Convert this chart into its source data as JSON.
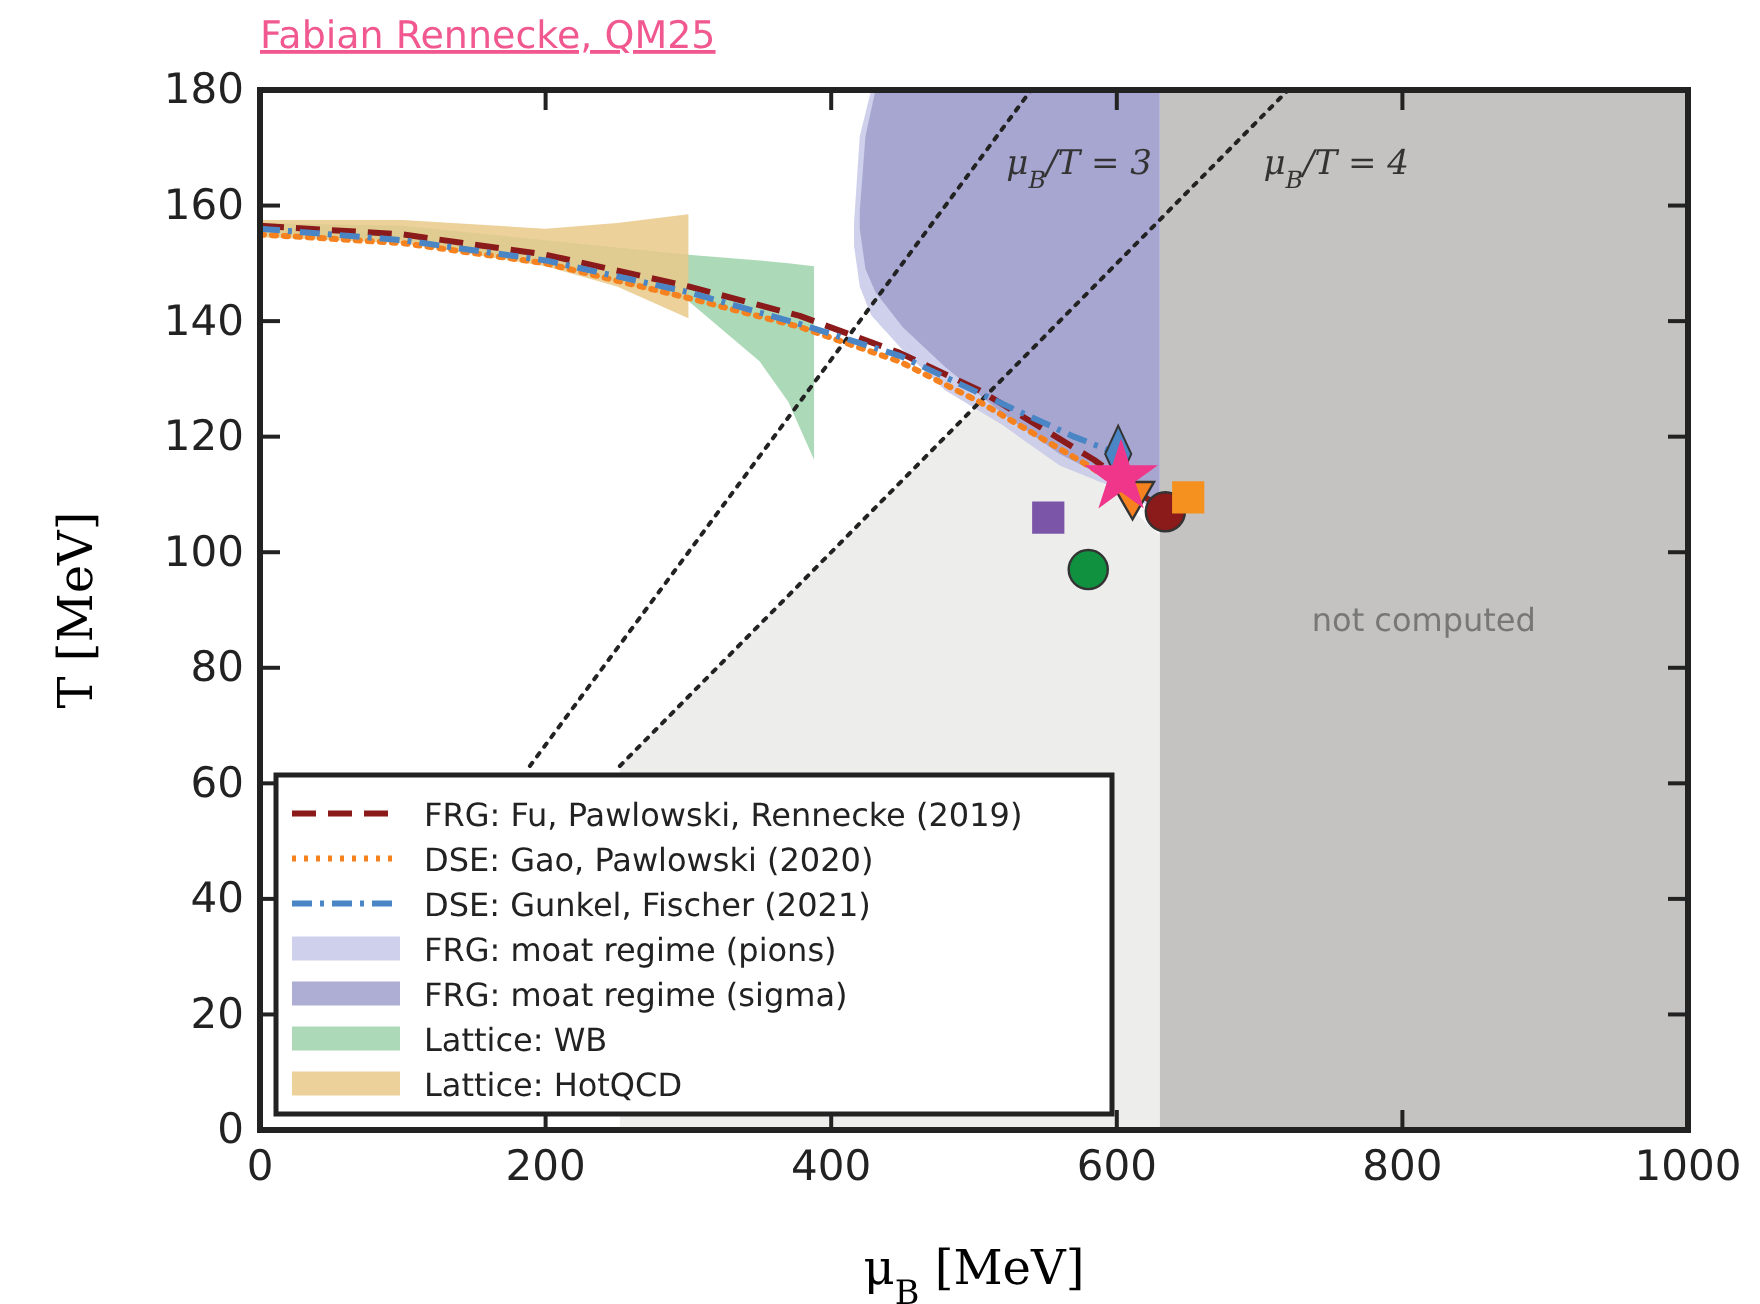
{
  "chart_data": {
    "type": "line",
    "title": "Fabian Rennecke, QM25",
    "xlabel": "μ$_{B}$ [MeV]",
    "ylabel": "T [MeV]",
    "xlim": [
      0,
      1000
    ],
    "xticks": [
      0,
      200,
      400,
      600,
      800,
      1000
    ],
    "ylim": [
      0,
      180
    ],
    "yticks": [
      0,
      20,
      40,
      60,
      80,
      100,
      120,
      140,
      160,
      180
    ],
    "legend": "bottom left",
    "bands": [
      {
        "axis": "x",
        "from": 630,
        "to": 1000,
        "label": "not computed",
        "color": "#c4c3c2"
      }
    ],
    "annotations": [
      "μ$_{B}$/T = 3",
      "μ$_{B}$/T = 4"
    ],
    "series": [
      {
        "type": "area",
        "color": "#ededec",
        "x": [
          252,
          505,
          550,
          630
        ],
        "values": [
          63,
          126,
          121,
          103
        ]
      },
      {
        "color": "#222222",
        "line_style": "dotted",
        "x": [
          189,
          540
        ],
        "values": [
          63,
          180
        ]
      },
      {
        "color": "#222222",
        "line_style": "dotted",
        "x": [
          252,
          720
        ],
        "values": [
          63,
          180
        ]
      },
      {
        "name": "FRG: moat regime (pions)",
        "type": "area",
        "color": "#c7c8e7",
        "x": [
          416,
          420,
          428,
          450,
          480,
          520,
          560,
          600,
          630
        ],
        "lower": [
          153,
          146,
          141,
          135,
          128,
          122,
          115,
          111,
          107
        ],
        "upper": [
          157,
          172,
          180,
          180,
          180,
          180,
          180,
          180,
          180
        ],
        "values": [
          null,
          null,
          null,
          null,
          null,
          null,
          null,
          null,
          null
        ]
      },
      {
        "name": "FRG: moat regime (sigma)",
        "type": "area",
        "color": "#a09fcb",
        "x": [
          420,
          424,
          431,
          450,
          480,
          520,
          560,
          600,
          630
        ],
        "lower": [
          156,
          149,
          145,
          139,
          132,
          124,
          117,
          112,
          108
        ],
        "upper": [
          159,
          172,
          180,
          180,
          180,
          180,
          180,
          180,
          180
        ],
        "values": [
          null,
          null,
          null,
          null,
          null,
          null,
          null,
          null,
          null
        ]
      },
      {
        "name": "Lattice: WB",
        "type": "area",
        "color": "#9ed4ac",
        "x": [
          0,
          100,
          200,
          300,
          350,
          370,
          388
        ],
        "lower": [
          155,
          154,
          150,
          143.5,
          133,
          126,
          116
        ],
        "upper": [
          157,
          156.5,
          154,
          151.5,
          150.5,
          150,
          149.5
        ],
        "values": [
          null,
          null,
          null,
          null,
          null,
          null,
          null
        ]
      },
      {
        "name": "Lattice: HotQCD",
        "type": "area",
        "color": "#e9c98a",
        "x": [
          0,
          100,
          200,
          250,
          300
        ],
        "lower": [
          154.5,
          153.5,
          149.5,
          146,
          140.5
        ],
        "upper": [
          157.5,
          157.5,
          156,
          157,
          158.5
        ],
        "values": [
          null,
          null,
          null,
          null,
          null
        ]
      },
      {
        "name": "FRG: Fu, Pawlowski, Rennecke (2019)",
        "color": "#8b1a1a",
        "line_style": "dashed",
        "x": [
          0,
          100,
          200,
          300,
          378,
          448,
          504,
          584,
          634
        ],
        "values": [
          156.5,
          155,
          151.5,
          146,
          140.9,
          134.5,
          128,
          116,
          107
        ]
      },
      {
        "name": "DSE: Gao, Pawlowski (2020)",
        "color": "#f5821f",
        "line_style": "dotted",
        "x": [
          0,
          100,
          200,
          300,
          378,
          448,
          504,
          580,
          612
        ],
        "values": [
          155,
          153.5,
          150,
          144,
          139,
          133,
          126,
          115,
          110
        ]
      },
      {
        "name": "DSE: Gunkel, Fischer (2021)",
        "color": "#4a86c5",
        "line_style": "dashdot",
        "x": [
          0,
          100,
          200,
          300,
          378,
          448,
          504,
          570,
          601
        ],
        "values": [
          156,
          154,
          150.5,
          145,
          139.5,
          134,
          127.5,
          120,
          117
        ]
      },
      {
        "type": "scatter",
        "marker": "square",
        "color": "#7b55a8",
        "x": [
          552
        ],
        "values": [
          106
        ]
      },
      {
        "type": "scatter",
        "marker": "circle",
        "color": "#0f9140",
        "x": [
          580
        ],
        "values": [
          97
        ]
      },
      {
        "type": "scatter",
        "marker": "diamond",
        "color": "#4a86c5",
        "x": [
          601
        ],
        "values": [
          117
        ]
      },
      {
        "type": "scatter",
        "marker": "triangle",
        "color": "#f5821f",
        "x": [
          611
        ],
        "values": [
          110
        ]
      },
      {
        "type": "scatter",
        "marker": "circle",
        "color": "#8b1a1a",
        "x": [
          634
        ],
        "values": [
          107
        ]
      },
      {
        "type": "scatter",
        "marker": "star",
        "color": "#f0368a",
        "x": [
          603
        ],
        "values": [
          113
        ]
      },
      {
        "type": "scatter",
        "marker": "square",
        "color": "#f5921f",
        "x": [
          650
        ],
        "values": [
          109.5
        ]
      }
    ]
  }
}
